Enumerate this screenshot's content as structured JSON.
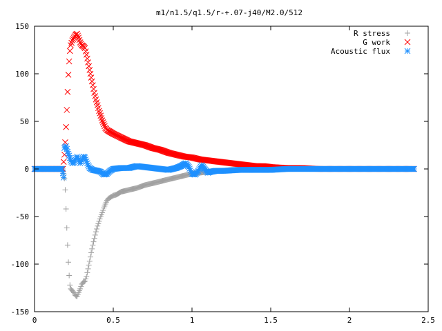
{
  "chart_data": {
    "type": "scatter",
    "title": "m1/n1.5/q1.5/r-+.07-j40/M2.0/512",
    "xlabel": "",
    "ylabel": "",
    "xlim": [
      0,
      2.5
    ],
    "ylim": [
      -150,
      150
    ],
    "xticks": [
      0,
      0.5,
      1,
      1.5,
      2,
      2.5
    ],
    "xtick_labels": [
      "0",
      "0.5",
      "1",
      "1.5",
      "2",
      "2.5"
    ],
    "yticks": [
      -150,
      -100,
      -50,
      0,
      50,
      100,
      150
    ],
    "ytick_labels": [
      "-150",
      "-100",
      "-50",
      "0",
      "50",
      "100",
      "150"
    ],
    "grid": false,
    "legend_position": "top-right",
    "series": [
      {
        "name": "R stress",
        "marker": "plus",
        "color": "#a0a0a0",
        "points": [
          [
            0,
            0
          ],
          [
            0.05,
            0
          ],
          [
            0.1,
            0
          ],
          [
            0.15,
            0
          ],
          [
            0.18,
            0
          ],
          [
            0.19,
            -10
          ],
          [
            0.195,
            -22
          ],
          [
            0.2,
            -42
          ],
          [
            0.205,
            -62
          ],
          [
            0.21,
            -80
          ],
          [
            0.215,
            -98
          ],
          [
            0.22,
            -112
          ],
          [
            0.225,
            -122
          ],
          [
            0.23,
            -126
          ],
          [
            0.24,
            -128
          ],
          [
            0.25,
            -130
          ],
          [
            0.26,
            -133
          ],
          [
            0.27,
            -134
          ],
          [
            0.28,
            -130
          ],
          [
            0.29,
            -126
          ],
          [
            0.3,
            -121
          ],
          [
            0.31,
            -119
          ],
          [
            0.32,
            -118
          ],
          [
            0.33,
            -113
          ],
          [
            0.34,
            -105
          ],
          [
            0.35,
            -97
          ],
          [
            0.36,
            -88
          ],
          [
            0.37,
            -80
          ],
          [
            0.38,
            -73
          ],
          [
            0.39,
            -66
          ],
          [
            0.4,
            -60
          ],
          [
            0.41,
            -55
          ],
          [
            0.42,
            -50
          ],
          [
            0.43,
            -46
          ],
          [
            0.44,
            -41
          ],
          [
            0.45,
            -37
          ],
          [
            0.46,
            -33
          ],
          [
            0.47,
            -31
          ],
          [
            0.48,
            -30
          ],
          [
            0.5,
            -28
          ],
          [
            0.52,
            -27
          ],
          [
            0.55,
            -24
          ],
          [
            0.6,
            -22
          ],
          [
            0.65,
            -20
          ],
          [
            0.7,
            -17
          ],
          [
            0.75,
            -15
          ],
          [
            0.8,
            -13
          ],
          [
            0.85,
            -11
          ],
          [
            0.9,
            -9
          ],
          [
            0.95,
            -7
          ],
          [
            1.0,
            -5
          ],
          [
            1.05,
            -4
          ],
          [
            1.1,
            -3
          ],
          [
            1.15,
            -2
          ],
          [
            1.2,
            -2
          ],
          [
            1.25,
            -1
          ],
          [
            1.3,
            -1
          ],
          [
            1.4,
            0
          ],
          [
            1.5,
            0
          ],
          [
            1.6,
            0
          ],
          [
            1.7,
            0
          ],
          [
            1.8,
            0
          ],
          [
            1.9,
            0
          ],
          [
            2.0,
            0
          ],
          [
            2.1,
            0
          ],
          [
            2.2,
            0
          ],
          [
            2.3,
            0
          ],
          [
            2.41,
            0
          ]
        ]
      },
      {
        "name": "G work",
        "marker": "cross",
        "color": "#ff0000",
        "points": [
          [
            0,
            0
          ],
          [
            0.05,
            0
          ],
          [
            0.1,
            0
          ],
          [
            0.15,
            0
          ],
          [
            0.18,
            0
          ],
          [
            0.19,
            15
          ],
          [
            0.195,
            28
          ],
          [
            0.2,
            44
          ],
          [
            0.205,
            62
          ],
          [
            0.21,
            81
          ],
          [
            0.215,
            99
          ],
          [
            0.22,
            113
          ],
          [
            0.225,
            124
          ],
          [
            0.23,
            130
          ],
          [
            0.24,
            135
          ],
          [
            0.25,
            138
          ],
          [
            0.26,
            141
          ],
          [
            0.27,
            142
          ],
          [
            0.28,
            138
          ],
          [
            0.29,
            133
          ],
          [
            0.3,
            130
          ],
          [
            0.31,
            129
          ],
          [
            0.32,
            127
          ],
          [
            0.33,
            120
          ],
          [
            0.34,
            112
          ],
          [
            0.35,
            104
          ],
          [
            0.36,
            96
          ],
          [
            0.37,
            88
          ],
          [
            0.38,
            80
          ],
          [
            0.39,
            73
          ],
          [
            0.4,
            67
          ],
          [
            0.41,
            61
          ],
          [
            0.42,
            56
          ],
          [
            0.43,
            51
          ],
          [
            0.44,
            47
          ],
          [
            0.45,
            43
          ],
          [
            0.46,
            41
          ],
          [
            0.47,
            40
          ],
          [
            0.5,
            37
          ],
          [
            0.55,
            33
          ],
          [
            0.6,
            29
          ],
          [
            0.65,
            27
          ],
          [
            0.7,
            25
          ],
          [
            0.75,
            22
          ],
          [
            0.8,
            20
          ],
          [
            0.85,
            17
          ],
          [
            0.9,
            15
          ],
          [
            0.95,
            13
          ],
          [
            1.0,
            12
          ],
          [
            1.05,
            10
          ],
          [
            1.1,
            9
          ],
          [
            1.15,
            8
          ],
          [
            1.2,
            7
          ],
          [
            1.25,
            6
          ],
          [
            1.3,
            5
          ],
          [
            1.35,
            4
          ],
          [
            1.4,
            3
          ],
          [
            1.45,
            3
          ],
          [
            1.5,
            2
          ],
          [
            1.6,
            1
          ],
          [
            1.7,
            1
          ],
          [
            1.8,
            0
          ],
          [
            1.9,
            0
          ],
          [
            2.0,
            0
          ],
          [
            2.1,
            0
          ],
          [
            2.2,
            0
          ],
          [
            2.3,
            0
          ],
          [
            2.41,
            0
          ]
        ]
      },
      {
        "name": "Acoustic flux",
        "marker": "star",
        "color": "#1e90ff",
        "points": [
          [
            0,
            0
          ],
          [
            0.02,
            0
          ],
          [
            0.04,
            0
          ],
          [
            0.06,
            0
          ],
          [
            0.08,
            0
          ],
          [
            0.1,
            0
          ],
          [
            0.12,
            0
          ],
          [
            0.14,
            0
          ],
          [
            0.16,
            0
          ],
          [
            0.175,
            0
          ],
          [
            0.185,
            -9
          ],
          [
            0.19,
            22
          ],
          [
            0.2,
            24
          ],
          [
            0.21,
            18
          ],
          [
            0.22,
            14
          ],
          [
            0.23,
            9
          ],
          [
            0.24,
            6
          ],
          [
            0.25,
            7
          ],
          [
            0.26,
            10
          ],
          [
            0.27,
            13
          ],
          [
            0.28,
            10
          ],
          [
            0.29,
            6
          ],
          [
            0.3,
            9
          ],
          [
            0.31,
            13
          ],
          [
            0.32,
            12
          ],
          [
            0.33,
            8
          ],
          [
            0.34,
            4
          ],
          [
            0.35,
            1
          ],
          [
            0.37,
            -1
          ],
          [
            0.4,
            -2
          ],
          [
            0.42,
            -3
          ],
          [
            0.44,
            -6
          ],
          [
            0.46,
            -5
          ],
          [
            0.48,
            -2
          ],
          [
            0.5,
            0
          ],
          [
            0.55,
            1
          ],
          [
            0.6,
            1
          ],
          [
            0.65,
            3
          ],
          [
            0.7,
            2
          ],
          [
            0.75,
            1
          ],
          [
            0.8,
            0
          ],
          [
            0.85,
            -1
          ],
          [
            0.9,
            1
          ],
          [
            0.93,
            3
          ],
          [
            0.96,
            6
          ],
          [
            0.98,
            2
          ],
          [
            1.0,
            -5
          ],
          [
            1.02,
            -6
          ],
          [
            1.04,
            -2
          ],
          [
            1.06,
            4
          ],
          [
            1.08,
            0
          ],
          [
            1.1,
            -4
          ],
          [
            1.12,
            -3
          ],
          [
            1.15,
            -2
          ],
          [
            1.2,
            -2
          ],
          [
            1.3,
            -1
          ],
          [
            1.4,
            -1
          ],
          [
            1.5,
            -1
          ],
          [
            1.6,
            0
          ],
          [
            1.7,
            0
          ],
          [
            1.8,
            0
          ],
          [
            1.9,
            0
          ],
          [
            2.0,
            0
          ],
          [
            2.1,
            0
          ],
          [
            2.2,
            0
          ],
          [
            2.3,
            0
          ],
          [
            2.41,
            0
          ]
        ]
      }
    ]
  }
}
